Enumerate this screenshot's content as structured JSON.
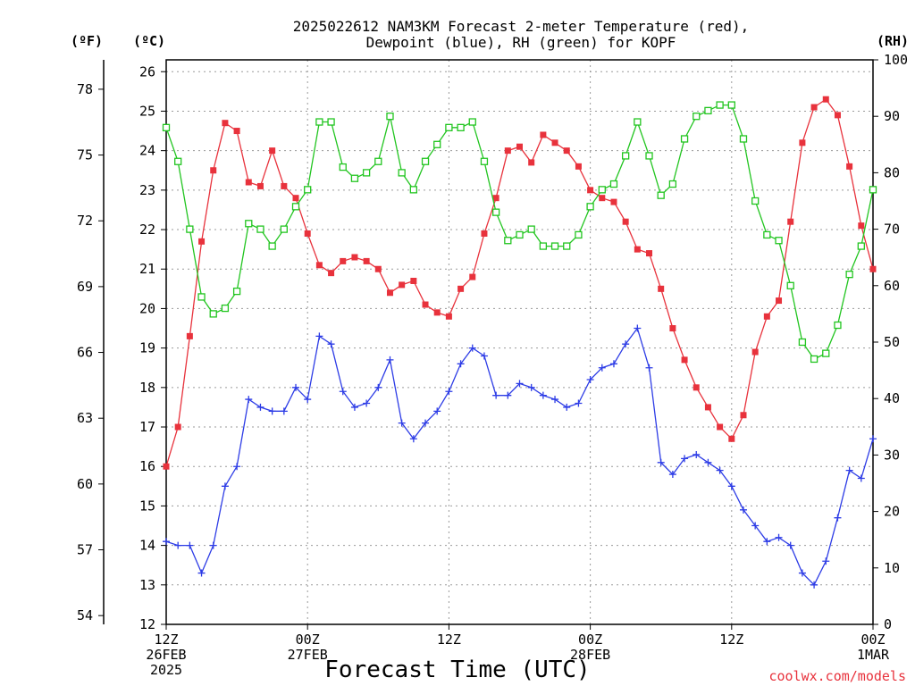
{
  "chart_data": {
    "type": "line",
    "title_lines": [
      "2025022612 NAM3KM Forecast 2-meter Temperature (red),",
      "Dewpoint (blue), RH (green) for KOPF"
    ],
    "xlabel": "Forecast Time (UTC)",
    "credit": "coolwx.com/models",
    "unit_labels": {
      "fahrenheit": "(ºF)",
      "celsius": "(ºC)",
      "rh": "(RH)"
    },
    "x_range_hours": [
      0,
      60
    ],
    "x_ticks": [
      {
        "hour": 0,
        "lines": [
          "12Z",
          "26FEB",
          "2025"
        ]
      },
      {
        "hour": 12,
        "lines": [
          "00Z",
          "27FEB"
        ]
      },
      {
        "hour": 24,
        "lines": [
          "12Z"
        ]
      },
      {
        "hour": 36,
        "lines": [
          "00Z",
          "28FEB"
        ]
      },
      {
        "hour": 48,
        "lines": [
          "12Z"
        ]
      },
      {
        "hour": 60,
        "lines": [
          "00Z",
          "1MAR"
        ]
      }
    ],
    "celsius_ticks": [
      12,
      13,
      14,
      15,
      16,
      17,
      18,
      19,
      20,
      21,
      22,
      23,
      24,
      25,
      26
    ],
    "celsius_range": [
      12,
      26.3
    ],
    "fahrenheit_ticks": [
      54,
      57,
      60,
      63,
      66,
      69,
      72,
      75,
      78
    ],
    "rh_ticks": [
      0,
      10,
      20,
      30,
      40,
      50,
      60,
      70,
      80,
      90,
      100
    ],
    "rh_range": [
      0,
      100
    ],
    "grid": true,
    "series": [
      {
        "name": "Temperature",
        "axis": "celsius",
        "color": "#e8323c",
        "marker": "square",
        "values": [
          16.0,
          17.0,
          19.3,
          21.7,
          23.5,
          24.7,
          24.5,
          23.2,
          23.1,
          24.0,
          23.1,
          22.8,
          21.9,
          21.1,
          20.9,
          21.2,
          21.3,
          21.2,
          21.0,
          20.4,
          20.6,
          20.7,
          20.1,
          19.9,
          19.8,
          20.5,
          20.8,
          21.9,
          22.8,
          24.0,
          24.1,
          23.7,
          24.4,
          24.2,
          24.0,
          23.6,
          23.0,
          22.8,
          22.7,
          22.2,
          21.5,
          21.4,
          20.5,
          19.5,
          18.7,
          18.0,
          17.5,
          17.0,
          16.7,
          17.3,
          18.9,
          19.8,
          20.2,
          22.2,
          24.2,
          25.1,
          25.3,
          24.9,
          23.6,
          22.1,
          21.0
        ]
      },
      {
        "name": "Dewpoint",
        "axis": "celsius",
        "color": "#2d3ce6",
        "marker": "plus",
        "values": [
          14.1,
          14.0,
          14.0,
          13.3,
          14.0,
          15.5,
          16.0,
          17.7,
          17.5,
          17.4,
          17.4,
          18.0,
          17.7,
          19.3,
          19.1,
          17.9,
          17.5,
          17.6,
          18.0,
          18.7,
          17.1,
          16.7,
          17.1,
          17.4,
          17.9,
          18.6,
          19.0,
          18.8,
          17.8,
          17.8,
          18.1,
          18.0,
          17.8,
          17.7,
          17.5,
          17.6,
          18.2,
          18.5,
          18.6,
          19.1,
          19.5,
          18.5,
          16.1,
          15.8,
          16.2,
          16.3,
          16.1,
          15.9,
          15.5,
          14.9,
          14.5,
          14.1,
          14.2,
          14.0,
          13.3,
          13.0,
          13.6,
          14.7,
          15.9,
          15.7,
          16.7
        ]
      },
      {
        "name": "RH",
        "axis": "rh",
        "color": "#22c520",
        "marker": "open-square",
        "values": [
          88,
          82,
          70,
          58,
          55,
          56,
          59,
          71,
          70,
          67,
          70,
          74,
          77,
          89,
          89,
          81,
          79,
          80,
          82,
          90,
          80,
          77,
          82,
          85,
          88,
          88,
          89,
          82,
          73,
          68,
          69,
          70,
          67,
          67,
          67,
          69,
          74,
          77,
          78,
          83,
          89,
          83,
          76,
          78,
          86,
          90,
          91,
          92,
          92,
          86,
          75,
          69,
          68,
          60,
          50,
          47,
          48,
          53,
          62,
          67,
          77
        ]
      }
    ]
  }
}
